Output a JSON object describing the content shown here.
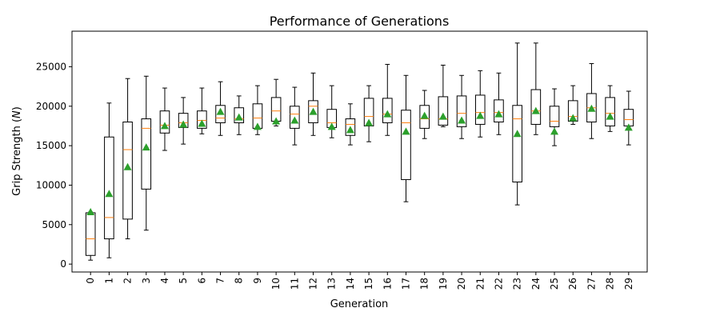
{
  "chart_data": {
    "type": "box",
    "title": "Performance of Generations",
    "xlabel": "Generation",
    "ylabel_prefix": "Grip Strength (",
    "ylabel_var": "N",
    "ylabel_suffix": ")",
    "ylim": [
      -1000,
      29500
    ],
    "yticks": [
      0,
      5000,
      10000,
      15000,
      20000,
      25000
    ],
    "ytick_labels": [
      "0",
      "5000",
      "10000",
      "15000",
      "20000",
      "25000"
    ],
    "grid": false,
    "legend": "none",
    "colors": {
      "box": "#000000",
      "median": "#ff7f0e",
      "mean": "#2ca02c"
    },
    "categories": [
      "0",
      "1",
      "2",
      "3",
      "4",
      "5",
      "6",
      "7",
      "8",
      "9",
      "10",
      "11",
      "12",
      "13",
      "14",
      "15",
      "16",
      "17",
      "18",
      "19",
      "20",
      "21",
      "22",
      "23",
      "24",
      "25",
      "26",
      "27",
      "28",
      "29"
    ],
    "boxes": [
      {
        "low": 500,
        "q1": 1100,
        "median": 3200,
        "q3": 6500,
        "high": 6600,
        "mean": 6600
      },
      {
        "low": 800,
        "q1": 3200,
        "median": 5900,
        "q3": 16100,
        "high": 20400,
        "mean": 8900
      },
      {
        "low": 3200,
        "q1": 5700,
        "median": 14500,
        "q3": 18000,
        "high": 23500,
        "mean": 12300
      },
      {
        "low": 4300,
        "q1": 9500,
        "median": 17200,
        "q3": 18400,
        "high": 23800,
        "mean": 14800
      },
      {
        "low": 14400,
        "q1": 16600,
        "median": 17600,
        "q3": 19400,
        "high": 22300,
        "mean": 17500
      },
      {
        "low": 15200,
        "q1": 17300,
        "median": 17900,
        "q3": 19100,
        "high": 21100,
        "mean": 17700
      },
      {
        "low": 16500,
        "q1": 17200,
        "median": 18200,
        "q3": 19400,
        "high": 22300,
        "mean": 17800
      },
      {
        "low": 16300,
        "q1": 17900,
        "median": 18500,
        "q3": 20100,
        "high": 23100,
        "mean": 19300
      },
      {
        "low": 16400,
        "q1": 17900,
        "median": 18400,
        "q3": 19800,
        "high": 21300,
        "mean": 18600
      },
      {
        "low": 16400,
        "q1": 17200,
        "median": 18500,
        "q3": 20300,
        "high": 22600,
        "mean": 17400
      },
      {
        "low": 17500,
        "q1": 18100,
        "median": 19400,
        "q3": 21100,
        "high": 23400,
        "mean": 18100
      },
      {
        "low": 15100,
        "q1": 17200,
        "median": 19000,
        "q3": 20000,
        "high": 22400,
        "mean": 18200
      },
      {
        "low": 16300,
        "q1": 17900,
        "median": 20000,
        "q3": 20700,
        "high": 24200,
        "mean": 19300
      },
      {
        "low": 16000,
        "q1": 17300,
        "median": 17900,
        "q3": 19600,
        "high": 22600,
        "mean": 17400
      },
      {
        "low": 15100,
        "q1": 16300,
        "median": 17700,
        "q3": 18400,
        "high": 20300,
        "mean": 17000
      },
      {
        "low": 15500,
        "q1": 17500,
        "median": 18700,
        "q3": 21000,
        "high": 22600,
        "mean": 17900
      },
      {
        "low": 16300,
        "q1": 17900,
        "median": 19000,
        "q3": 21000,
        "high": 25300,
        "mean": 19000
      },
      {
        "low": 7900,
        "q1": 10700,
        "median": 17900,
        "q3": 19500,
        "high": 23900,
        "mean": 16800
      },
      {
        "low": 15900,
        "q1": 17200,
        "median": 18400,
        "q3": 20100,
        "high": 22000,
        "mean": 18800
      },
      {
        "low": 17400,
        "q1": 17600,
        "median": 18400,
        "q3": 21200,
        "high": 25200,
        "mean": 18700
      },
      {
        "low": 15900,
        "q1": 17400,
        "median": 19100,
        "q3": 21300,
        "high": 23900,
        "mean": 18200
      },
      {
        "low": 16100,
        "q1": 17700,
        "median": 19200,
        "q3": 21400,
        "high": 24500,
        "mean": 18800
      },
      {
        "low": 16400,
        "q1": 18000,
        "median": 19200,
        "q3": 20800,
        "high": 24200,
        "mean": 19000
      },
      {
        "low": 7500,
        "q1": 10400,
        "median": 18400,
        "q3": 20100,
        "high": 28000,
        "mean": 16500
      },
      {
        "low": 16400,
        "q1": 17700,
        "median": 19400,
        "q3": 22100,
        "high": 28000,
        "mean": 19400
      },
      {
        "low": 15000,
        "q1": 17400,
        "median": 18100,
        "q3": 20000,
        "high": 22200,
        "mean": 16800
      },
      {
        "low": 17700,
        "q1": 18100,
        "median": 18700,
        "q3": 20700,
        "high": 22600,
        "mean": 18500
      },
      {
        "low": 15900,
        "q1": 18000,
        "median": 19800,
        "q3": 21600,
        "high": 25400,
        "mean": 19700
      },
      {
        "low": 16800,
        "q1": 17500,
        "median": 19100,
        "q3": 21100,
        "high": 22600,
        "mean": 18700
      },
      {
        "low": 15100,
        "q1": 17500,
        "median": 18300,
        "q3": 19600,
        "high": 21900,
        "mean": 17300
      }
    ]
  }
}
